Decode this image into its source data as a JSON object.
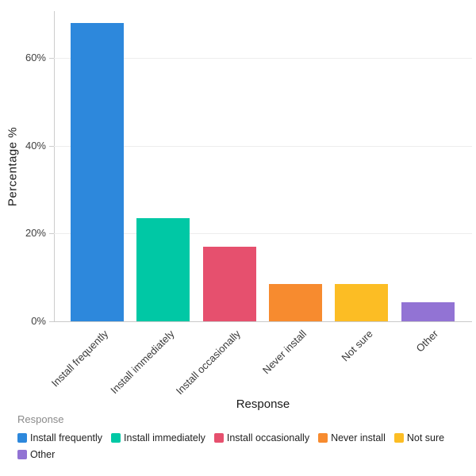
{
  "chart_data": {
    "type": "bar",
    "title": "",
    "categories": [
      "Install frequently",
      "Install immediately",
      "Install occasionally",
      "Never install",
      "Not sure",
      "Other"
    ],
    "values": [
      68,
      23.5,
      17,
      8.5,
      8.5,
      4.4
    ],
    "colors": [
      "#2d88dc",
      "#00c8a5",
      "#e6506e",
      "#f78b2f",
      "#fcbd24",
      "#9273d4"
    ],
    "xlabel": "Response",
    "ylabel": "Percentage %",
    "yticks": [
      0,
      20,
      40,
      60
    ],
    "ytick_labels": [
      "0%",
      "20%",
      "40%",
      "60%"
    ],
    "ylim": [
      0,
      70.7
    ],
    "grid": true,
    "background_color": "#ffffff",
    "axis_line_color": "#cccccc",
    "gridline_color": "#ededed",
    "legend": {
      "title": "Response",
      "position": "bottom",
      "entries": [
        {
          "label": "Install frequently",
          "color": "#2d88dc"
        },
        {
          "label": "Install immediately",
          "color": "#00c8a5"
        },
        {
          "label": "Install occasionally",
          "color": "#e6506e"
        },
        {
          "label": "Never install",
          "color": "#f78b2f"
        },
        {
          "label": "Not sure",
          "color": "#fcbd24"
        },
        {
          "label": "Other",
          "color": "#9273d4"
        }
      ]
    }
  }
}
